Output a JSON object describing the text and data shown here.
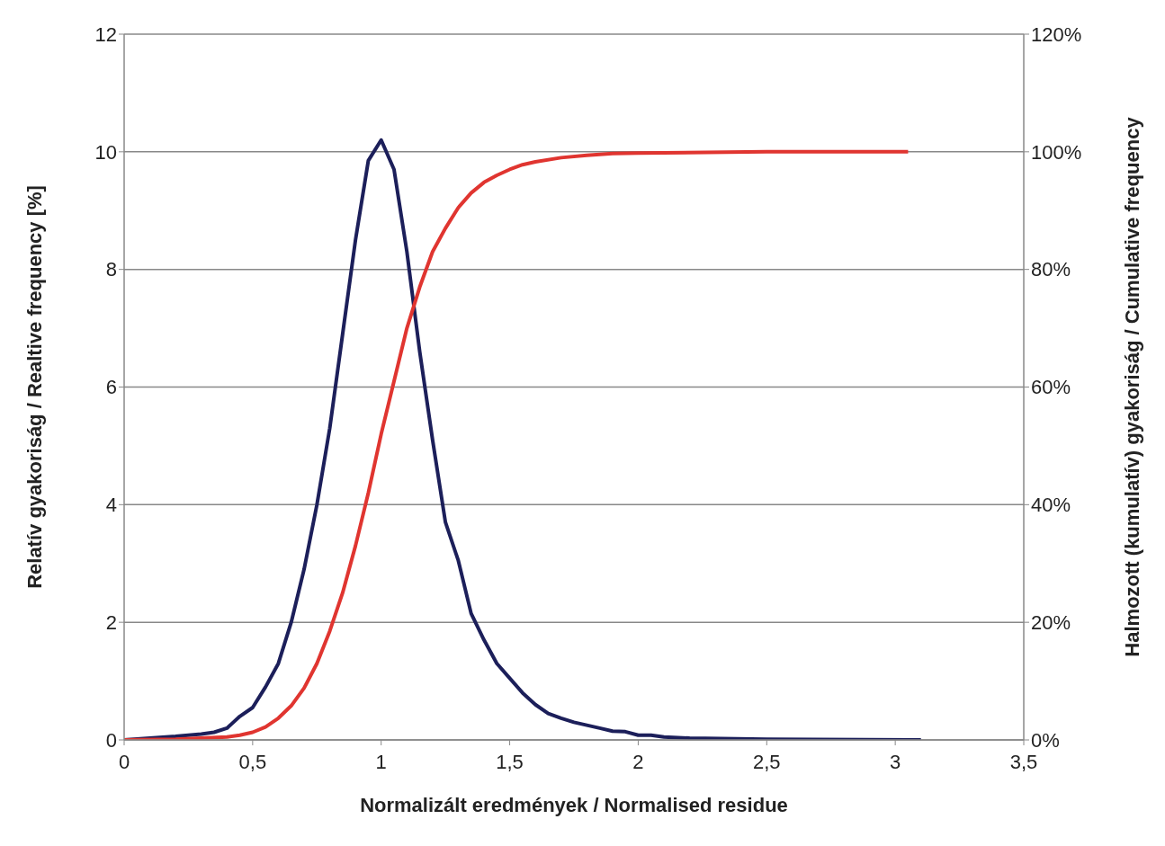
{
  "chart_data": {
    "type": "line",
    "xlabel": "Normalizált eredmények / Normalised residue",
    "ylabel": "Relatív gyakoriság / Realtive frequency [%]",
    "y2label": "Halmozott (kumulatív) gyakoriság / Cumulative frequency",
    "xlim": [
      0,
      3.5
    ],
    "xticks": [
      0,
      {
        "value": 0.5,
        "label": "0,5"
      },
      1,
      {
        "value": 1.5,
        "label": "1,5"
      },
      2,
      {
        "value": 2.5,
        "label": "2,5"
      },
      3,
      {
        "value": 3.5,
        "label": "3,5"
      }
    ],
    "ylim": [
      0,
      12
    ],
    "yticks": [
      0,
      2,
      4,
      6,
      8,
      10,
      12
    ],
    "y2lim": [
      0,
      120
    ],
    "y2ticks": [
      {
        "value": 0,
        "label": "0%"
      },
      {
        "value": 20,
        "label": "20%"
      },
      {
        "value": 40,
        "label": "40%"
      },
      {
        "value": 60,
        "label": "60%"
      },
      {
        "value": 80,
        "label": "80%"
      },
      {
        "value": 100,
        "label": "100%"
      },
      {
        "value": 120,
        "label": "120%"
      }
    ],
    "grid": "y",
    "marker": "none",
    "line_style": "solid",
    "series": [
      {
        "color": "#1c1f5a",
        "x": [
          0,
          0.1,
          0.2,
          0.3,
          0.35,
          0.4,
          0.45,
          0.5,
          0.55,
          0.6,
          0.65,
          0.7,
          0.75,
          0.8,
          0.85,
          0.9,
          0.95,
          1.0,
          1.05,
          1.1,
          1.15,
          1.2,
          1.25,
          1.3,
          1.35,
          1.4,
          1.45,
          1.5,
          1.55,
          1.6,
          1.65,
          1.7,
          1.75,
          1.8,
          1.85,
          1.9,
          1.95,
          2.0,
          2.05,
          2.1,
          2.2,
          2.5,
          3.1
        ],
        "values": [
          0,
          0.03,
          0.06,
          0.1,
          0.13,
          0.2,
          0.4,
          0.55,
          0.9,
          1.3,
          2.0,
          2.9,
          4.0,
          5.3,
          6.9,
          8.5,
          9.85,
          10.2,
          9.7,
          8.3,
          6.6,
          5.1,
          3.7,
          3.05,
          2.15,
          1.7,
          1.3,
          1.05,
          0.8,
          0.6,
          0.45,
          0.37,
          0.3,
          0.25,
          0.2,
          0.15,
          0.14,
          0.08,
          0.08,
          0.05,
          0.03,
          0.01,
          0
        ]
      },
      {
        "color": "#e03530",
        "axis": "y2",
        "x": [
          0,
          0.2,
          0.3,
          0.4,
          0.45,
          0.5,
          0.55,
          0.6,
          0.65,
          0.7,
          0.75,
          0.8,
          0.85,
          0.9,
          0.95,
          1.0,
          1.05,
          1.1,
          1.15,
          1.2,
          1.25,
          1.3,
          1.35,
          1.4,
          1.45,
          1.5,
          1.55,
          1.6,
          1.7,
          1.8,
          1.9,
          2.0,
          2.5,
          3.05
        ],
        "values": [
          0,
          0.1,
          0.3,
          0.5,
          0.8,
          1.3,
          2.2,
          3.7,
          5.8,
          8.8,
          13,
          18.5,
          25,
          33,
          42,
          52,
          61,
          70,
          77,
          83,
          87,
          90.5,
          93,
          94.8,
          96,
          97,
          97.8,
          98.3,
          99,
          99.4,
          99.7,
          99.8,
          100,
          100
        ]
      }
    ]
  }
}
